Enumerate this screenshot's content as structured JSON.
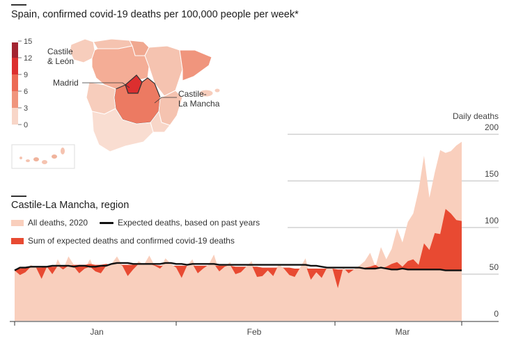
{
  "title": "Spain, confirmed covid-19 deaths per 100,000 people per week*",
  "map": {
    "scale_ticks": [
      "15",
      "12",
      "9",
      "6",
      "3",
      "0"
    ],
    "scale_colors": [
      "#a32431",
      "#dc2f2f",
      "#ec6a55",
      "#f0957d",
      "#f5b9a3",
      "#f8d6c8"
    ],
    "labels": {
      "castile_leon_1": "Castile",
      "castile_leon_2": "& León",
      "madrid": "Madrid",
      "castile_la_mancha_1": "Castile-",
      "castile_la_mancha_2": "La Mancha"
    }
  },
  "chart_data": {
    "type": "area",
    "title": "Castile-La Mancha, region",
    "ylabel": "Daily deaths",
    "ylim": [
      0,
      200
    ],
    "yticks": [
      "200",
      "150",
      "100",
      "50",
      "0"
    ],
    "xticks": [
      "Jan",
      "Feb",
      "Mar"
    ],
    "x_range": [
      "2020-01-01",
      "2020-03-24"
    ],
    "series": [
      {
        "name": "All deaths, 2020",
        "color": "#f9cfbd",
        "values": [
          55,
          49,
          52,
          60,
          57,
          45,
          58,
          50,
          66,
          55,
          69,
          60,
          51,
          56,
          66,
          53,
          51,
          60,
          61,
          69,
          59,
          48,
          55,
          64,
          60,
          70,
          59,
          56,
          67,
          61,
          57,
          46,
          59,
          66,
          51,
          56,
          60,
          71,
          53,
          58,
          63,
          50,
          52,
          58,
          64,
          47,
          48,
          54,
          48,
          61,
          56,
          49,
          47,
          57,
          67,
          44,
          52,
          46,
          57,
          56,
          35,
          57,
          51,
          55,
          59,
          64,
          73,
          58,
          79,
          66,
          77,
          99,
          84,
          106,
          115,
          140,
          177,
          132,
          159,
          183,
          180,
          182,
          188,
          192
        ]
      },
      {
        "name": "Sum of expected deaths and confirmed covid-19 deaths",
        "color": "#e84a32",
        "values": [
          55,
          56,
          57,
          57,
          57,
          57,
          58,
          58,
          58,
          58,
          59,
          60,
          60,
          60,
          61,
          60,
          60,
          61,
          60,
          60,
          60,
          60,
          60,
          60,
          60,
          60,
          60,
          59,
          59,
          59,
          59,
          59,
          59,
          59,
          59,
          59,
          59,
          59,
          59,
          59,
          59,
          58,
          58,
          58,
          58,
          58,
          57,
          57,
          57,
          57,
          57,
          57,
          56,
          56,
          56,
          56,
          56,
          56,
          56,
          56,
          55,
          55,
          55,
          55,
          56,
          57,
          58,
          60,
          56,
          58,
          61,
          63,
          58,
          64,
          66,
          60,
          83,
          76,
          94,
          93,
          120,
          115,
          108,
          107
        ]
      },
      {
        "name": "Expected deaths, based on past years",
        "color": "#111111",
        "values": [
          54,
          57,
          57,
          58,
          58,
          58,
          58,
          59,
          59,
          59,
          59,
          58,
          59,
          59,
          58,
          58,
          59,
          59,
          61,
          62,
          62,
          62,
          61,
          61,
          61,
          61,
          61,
          61,
          62,
          62,
          61,
          61,
          60,
          61,
          61,
          61,
          61,
          61,
          60,
          60,
          60,
          60,
          60,
          60,
          60,
          60,
          60,
          60,
          60,
          60,
          60,
          60,
          60,
          60,
          60,
          59,
          59,
          58,
          57,
          57,
          57,
          57,
          57,
          57,
          57,
          56,
          56,
          56,
          57,
          56,
          55,
          55,
          56,
          55,
          55,
          55,
          55,
          55,
          55,
          55,
          54,
          54,
          54,
          54
        ]
      }
    ],
    "legend": {
      "all_deaths": "All deaths, 2020",
      "expected": "Expected deaths, based on past years",
      "sum": "Sum of expected deaths and confirmed covid-19 deaths"
    }
  }
}
